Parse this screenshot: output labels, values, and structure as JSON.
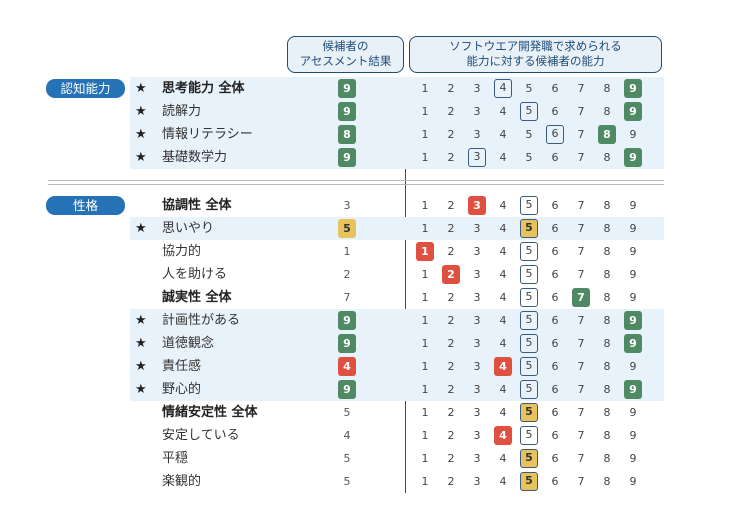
{
  "header": {
    "assessment_line1": "候補者の",
    "assessment_line2": "アセスメント結果",
    "requirement_line1": "ソフトウエア開発職で求められる",
    "requirement_line2": "能力に対する候補者の能力"
  },
  "colors": {
    "green": "#4f8a64",
    "yellow": "#e8c25c",
    "red": "#e05040",
    "section": "#2672b6",
    "outline": "#3a5a80"
  },
  "star_symbol": "★",
  "scale_numbers": [
    "1",
    "2",
    "3",
    "4",
    "5",
    "6",
    "7",
    "8",
    "9"
  ],
  "sections": [
    {
      "label": "認知能力",
      "rows": [
        {
          "label": "思考能力 全体",
          "bold": true,
          "star": true,
          "score": "9",
          "score_color": "green",
          "outline": 4,
          "fill_color": "green",
          "shade": true
        },
        {
          "label": "読解力",
          "bold": false,
          "star": true,
          "score": "9",
          "score_color": "green",
          "outline": 5,
          "fill_color": "green",
          "shade": true
        },
        {
          "label": "情報リテラシー",
          "bold": false,
          "star": true,
          "score": "8",
          "score_color": "green",
          "outline": 6,
          "fill_color": "green",
          "shade": true
        },
        {
          "label": "基礎数学力",
          "bold": false,
          "star": true,
          "score": "9",
          "score_color": "green",
          "outline": 3,
          "fill_color": "green",
          "shade": true
        }
      ]
    },
    {
      "label": "性格",
      "rows": [
        {
          "label": "協調性 全体",
          "bold": true,
          "star": false,
          "score": "3",
          "score_color": "",
          "outline": 5,
          "fill_color": "red",
          "shade": false
        },
        {
          "label": "思いやり",
          "bold": false,
          "star": true,
          "score": "5",
          "score_color": "yellow",
          "outline": 5,
          "fill_color": "yellow",
          "shade": true
        },
        {
          "label": "協力的",
          "bold": false,
          "star": false,
          "score": "1",
          "score_color": "",
          "outline": 5,
          "fill_color": "red",
          "shade": false
        },
        {
          "label": "人を助ける",
          "bold": false,
          "star": false,
          "score": "2",
          "score_color": "",
          "outline": 5,
          "fill_color": "red",
          "shade": false
        },
        {
          "label": "誠実性 全体",
          "bold": true,
          "star": false,
          "score": "7",
          "score_color": "",
          "outline": 5,
          "fill_color": "green",
          "shade": false
        },
        {
          "label": "計画性がある",
          "bold": false,
          "star": true,
          "score": "9",
          "score_color": "green",
          "outline": 5,
          "fill_color": "green",
          "shade": true
        },
        {
          "label": "道徳観念",
          "bold": false,
          "star": true,
          "score": "9",
          "score_color": "green",
          "outline": 5,
          "fill_color": "green",
          "shade": true
        },
        {
          "label": "責任感",
          "bold": false,
          "star": true,
          "score": "4",
          "score_color": "red",
          "outline": 5,
          "fill_color": "red",
          "shade": true
        },
        {
          "label": "野心的",
          "bold": false,
          "star": true,
          "score": "9",
          "score_color": "green",
          "outline": 5,
          "fill_color": "green",
          "shade": true
        },
        {
          "label": "情緒安定性 全体",
          "bold": true,
          "star": false,
          "score": "5",
          "score_color": "",
          "outline": 5,
          "fill_color": "yellow",
          "shade": false
        },
        {
          "label": "安定している",
          "bold": false,
          "star": false,
          "score": "4",
          "score_color": "",
          "outline": 5,
          "fill_color": "red",
          "shade": false
        },
        {
          "label": "平穏",
          "bold": false,
          "star": false,
          "score": "5",
          "score_color": "",
          "outline": 5,
          "fill_color": "yellow",
          "shade": false
        },
        {
          "label": "楽観的",
          "bold": false,
          "star": false,
          "score": "5",
          "score_color": "",
          "outline": 5,
          "fill_color": "yellow",
          "shade": false
        }
      ]
    }
  ]
}
